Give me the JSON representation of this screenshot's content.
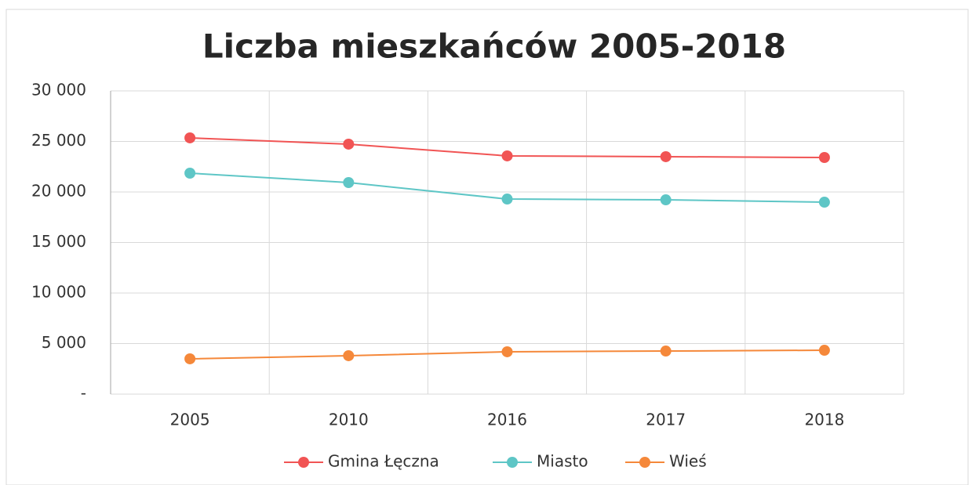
{
  "chart_data": {
    "type": "line",
    "title": "Liczba mieszkańców 2005-2018",
    "categories": [
      "2005",
      "2010",
      "2016",
      "2017",
      "2018"
    ],
    "series": [
      {
        "name": "Gmina Łęczna",
        "color": "#f15454",
        "values": [
          25350,
          24730,
          23570,
          23490,
          23410
        ]
      },
      {
        "name": "Miasto",
        "color": "#5ec6c6",
        "values": [
          21860,
          20930,
          19300,
          19220,
          18990
        ]
      },
      {
        "name": "Wieś",
        "color": "#f5883a",
        "values": [
          3490,
          3800,
          4190,
          4260,
          4340
        ]
      }
    ],
    "ylim": [
      0,
      30000
    ],
    "yticks": [
      {
        "value": 0,
        "label": "-"
      },
      {
        "value": 5000,
        "label": "5 000"
      },
      {
        "value": 10000,
        "label": "10 000"
      },
      {
        "value": 15000,
        "label": "15 000"
      },
      {
        "value": 20000,
        "label": "20 000"
      },
      {
        "value": 25000,
        "label": "25 000"
      },
      {
        "value": 30000,
        "label": "30 000"
      }
    ],
    "grid": true,
    "legend": "bottom"
  }
}
